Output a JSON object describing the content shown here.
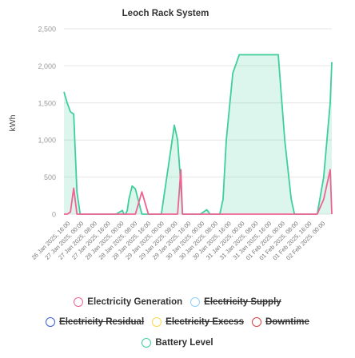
{
  "chart_data": {
    "type": "line",
    "title": "Leoch Rack System",
    "ylabel": "kWh",
    "xlabel": "",
    "ylim": [
      0,
      2500
    ],
    "yticks": [
      "0",
      "500",
      "1,000",
      "1,500",
      "2,000",
      "2,500"
    ],
    "grid": true,
    "legend_position": "bottom",
    "xtick_labels": [
      "26 Jan 2025, 16:00",
      "27 Jan 2025, 00:00",
      "27 Jan 2025, 08:00",
      "27 Jan 2025, 16:00",
      "28 Jan 2025, 00:00",
      "28 Jan 2025, 08:00",
      "28 Jan 2025, 16:00",
      "29 Jan 2025, 00:00",
      "29 Jan 2025, 08:00",
      "29 Jan 2025, 16:00",
      "30 Jan 2025, 00:00",
      "30 Jan 2025, 08:00",
      "30 Jan 2025, 16:00",
      "31 Jan 2025, 00:00",
      "31 Jan 2025, 08:00",
      "31 Jan 2025, 16:00",
      "01 Feb 2025, 00:00",
      "01 Feb 2025, 08:00",
      "01 Feb 2025, 16:00",
      "02 Feb 2025, 00:00"
    ],
    "x_hours": [
      0,
      2,
      4,
      6,
      8,
      10,
      12,
      16,
      20,
      24,
      28,
      32,
      36,
      37,
      38,
      39,
      40,
      42,
      44,
      48,
      52,
      56,
      60,
      64,
      66,
      68,
      70,
      72,
      73,
      74,
      76,
      80,
      84,
      88,
      90,
      92,
      94,
      96,
      98,
      100,
      104,
      108,
      112,
      116,
      120,
      124,
      128,
      132,
      136,
      140,
      142,
      144,
      146,
      148,
      152,
      156,
      160,
      164,
      165
    ],
    "series": [
      {
        "name": "Battery Level",
        "color": "#3ecf9a",
        "values": [
          1650,
          1500,
          1380,
          1350,
          300,
          0,
          0,
          0,
          0,
          0,
          0,
          0,
          50,
          0,
          0,
          50,
          200,
          380,
          340,
          0,
          0,
          0,
          0,
          600,
          900,
          1200,
          1000,
          400,
          0,
          0,
          0,
          0,
          0,
          60,
          0,
          0,
          0,
          0,
          200,
          1000,
          1900,
          2150,
          2150,
          2150,
          2150,
          2150,
          2150,
          2150,
          1000,
          200,
          0,
          0,
          0,
          0,
          0,
          0,
          500,
          1500,
          2050
        ]
      },
      {
        "name": "Electricity Generation",
        "color": "#f06292",
        "values": [
          0,
          0,
          30,
          350,
          0,
          0,
          0,
          0,
          0,
          0,
          0,
          0,
          0,
          0,
          0,
          0,
          0,
          0,
          0,
          300,
          0,
          0,
          0,
          0,
          0,
          0,
          0,
          600,
          0,
          0,
          0,
          0,
          0,
          0,
          0,
          0,
          0,
          0,
          0,
          0,
          0,
          0,
          0,
          0,
          0,
          0,
          0,
          0,
          0,
          0,
          0,
          0,
          0,
          0,
          0,
          0,
          200,
          600,
          0
        ]
      }
    ]
  },
  "legend": [
    {
      "name": "Electricity Generation",
      "color": "#f06292",
      "hidden": false
    },
    {
      "name": "Electricity Supply",
      "color": "#8fd0ff",
      "hidden": true
    },
    {
      "name": "Electricity Residual",
      "color": "#3b5bdb",
      "hidden": true
    },
    {
      "name": "Electricity Excess",
      "color": "#ffd54f",
      "hidden": true
    },
    {
      "name": "Downtime",
      "color": "#d84343",
      "hidden": true
    },
    {
      "name": "Battery Level",
      "color": "#3ecf9a",
      "hidden": false
    }
  ]
}
